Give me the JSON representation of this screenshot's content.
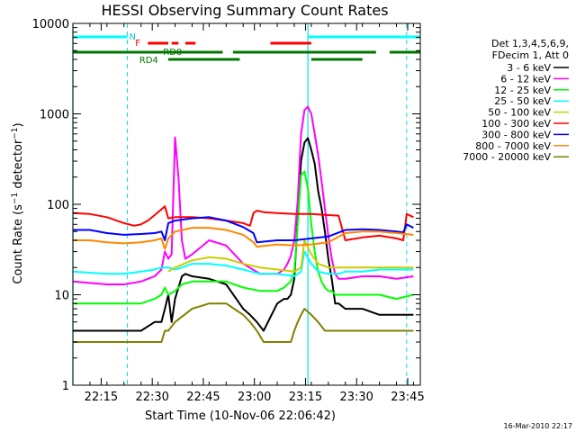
{
  "chart_data": {
    "type": "line",
    "title": "HESSI Observing Summary Count Rates",
    "xlabel": "Start Time (10-Nov-06 22:06:42)",
    "ylabel": "Count Rate (s⁻¹ detector⁻¹)",
    "ylabel_parts": {
      "base": "Count Rate (s",
      "sup1": "−1",
      "mid": " detector",
      "sup2": "−1",
      "end": ")"
    },
    "x_tick_labels": [
      "22:15",
      "22:30",
      "22:45",
      "23:00",
      "23:15",
      "23:30",
      "23:45"
    ],
    "x_ticks_min": [
      8.3,
      23.3,
      38.3,
      53.3,
      68.3,
      83.3,
      98.3
    ],
    "xlim_min": [
      0,
      102
    ],
    "y_scale": "log",
    "ylim": [
      1,
      10000
    ],
    "y_tick_labels": [
      "1",
      "10",
      "100",
      "1000",
      "10000"
    ],
    "grid": false,
    "legend_placement": "right",
    "legend_header": [
      "Det 1,3,4,5,6,9,",
      "FDecim 1, Att 0"
    ],
    "series": [
      {
        "name": "3 - 6 keV",
        "color": "#000000",
        "x": [
          0,
          10,
          15,
          20,
          24,
          26,
          27,
          28,
          29,
          30,
          31,
          32,
          33,
          35,
          40,
          45,
          50,
          52,
          54,
          56,
          60,
          62,
          63,
          64,
          65,
          66,
          67,
          68,
          69,
          70,
          71,
          72,
          73,
          74,
          75,
          76,
          77,
          78,
          80,
          82,
          85,
          90,
          95,
          98,
          100
        ],
        "y": [
          4,
          4,
          4,
          4,
          5,
          5,
          7,
          10,
          5,
          9,
          12,
          16,
          17,
          16,
          15,
          13,
          7,
          6,
          5,
          4,
          8,
          9,
          9,
          10,
          15,
          70,
          300,
          480,
          540,
          400,
          280,
          140,
          90,
          50,
          25,
          15,
          8,
          8,
          7,
          7,
          7,
          6,
          6,
          6,
          6
        ]
      },
      {
        "name": "6 - 12 keV",
        "color": "#ff00ff",
        "x": [
          0,
          10,
          15,
          20,
          22,
          24,
          26,
          27,
          28,
          29,
          30,
          31,
          32,
          33,
          35,
          40,
          45,
          50,
          55,
          60,
          62,
          63,
          64,
          65,
          66,
          67,
          68,
          69,
          70,
          71,
          72,
          73,
          74,
          75,
          76,
          77,
          78,
          80,
          85,
          90,
          95,
          100
        ],
        "y": [
          14,
          13,
          13,
          14,
          15,
          16,
          19,
          30,
          25,
          28,
          550,
          200,
          40,
          25,
          28,
          40,
          35,
          22,
          17,
          17,
          19,
          22,
          27,
          40,
          110,
          600,
          1100,
          1200,
          1000,
          600,
          350,
          180,
          90,
          45,
          25,
          17,
          15,
          15,
          16,
          16,
          15,
          16
        ]
      },
      {
        "name": "12 - 25 keV",
        "color": "#00ff00",
        "x": [
          0,
          10,
          15,
          20,
          24,
          26,
          27,
          28,
          30,
          32,
          35,
          40,
          45,
          50,
          55,
          60,
          62,
          63,
          64,
          65,
          66,
          67,
          68,
          69,
          70,
          71,
          72,
          73,
          74,
          75,
          76,
          77,
          80,
          85,
          90,
          95,
          100
        ],
        "y": [
          8,
          8,
          8,
          8,
          9,
          10,
          12,
          10,
          11,
          13,
          14,
          14,
          14,
          12,
          11,
          11,
          12,
          13,
          14,
          18,
          60,
          210,
          230,
          150,
          60,
          30,
          18,
          14,
          12,
          11,
          11,
          10,
          10,
          10,
          10,
          9,
          10
        ]
      },
      {
        "name": "25 - 50 keV",
        "color": "#00ffff",
        "x": [
          0,
          10,
          15,
          20,
          24,
          26,
          28,
          30,
          32,
          35,
          40,
          45,
          50,
          55,
          60,
          65,
          67,
          68,
          70,
          72,
          75,
          78,
          80,
          85,
          90,
          95,
          100
        ],
        "y": [
          18,
          17,
          17,
          18,
          19,
          20,
          20,
          19,
          20,
          22,
          22,
          21,
          19,
          17,
          17,
          16,
          18,
          30,
          22,
          18,
          17,
          17,
          18,
          18,
          19,
          19,
          19
        ]
      },
      {
        "name": "50 - 100 keV",
        "color": "#cccc00",
        "x": [
          0,
          27,
          28,
          30,
          35,
          40,
          45,
          50,
          55,
          60,
          65,
          67,
          68,
          70,
          72,
          75,
          78,
          80,
          85,
          90,
          95,
          100
        ],
        "y": [
          null,
          null,
          18,
          20,
          24,
          26,
          25,
          22,
          20,
          19,
          18,
          20,
          40,
          28,
          22,
          20,
          20,
          20,
          20,
          20,
          20,
          20
        ]
      },
      {
        "name": "100 - 300 keV",
        "color": "#ff0000",
        "x": [
          0,
          5,
          10,
          15,
          18,
          20,
          22,
          24,
          26,
          27,
          28,
          30,
          35,
          40,
          45,
          50,
          52,
          53,
          54,
          56,
          60,
          65,
          70,
          75,
          78,
          80,
          85,
          90,
          95,
          97,
          98,
          100
        ],
        "y": [
          80,
          78,
          72,
          62,
          58,
          60,
          66,
          76,
          88,
          95,
          70,
          72,
          72,
          70,
          66,
          62,
          58,
          80,
          85,
          82,
          80,
          78,
          78,
          76,
          75,
          40,
          43,
          45,
          42,
          40,
          78,
          72
        ]
      },
      {
        "name": "300 - 800 keV",
        "color": "#0000ff",
        "x": [
          0,
          5,
          10,
          15,
          20,
          24,
          26,
          27,
          28,
          30,
          35,
          40,
          45,
          50,
          53,
          54,
          60,
          65,
          70,
          75,
          80,
          85,
          90,
          95,
          97,
          98,
          100
        ],
        "y": [
          52,
          52,
          48,
          46,
          47,
          48,
          50,
          40,
          62,
          66,
          70,
          72,
          66,
          56,
          48,
          38,
          40,
          40,
          42,
          44,
          52,
          53,
          52,
          50,
          49,
          60,
          55
        ]
      },
      {
        "name": "800 - 7000 keV",
        "color": "#ff8800",
        "x": [
          0,
          5,
          10,
          15,
          20,
          24,
          26,
          27,
          28,
          30,
          35,
          40,
          45,
          50,
          53,
          54,
          60,
          65,
          70,
          75,
          80,
          85,
          90,
          95,
          100
        ],
        "y": [
          40,
          40,
          38,
          37,
          38,
          40,
          42,
          32,
          42,
          50,
          55,
          55,
          52,
          46,
          38,
          34,
          36,
          35,
          36,
          38,
          48,
          50,
          50,
          48,
          46
        ]
      },
      {
        "name": "7000 - 20000 keV",
        "color": "#808000",
        "x": [
          0,
          5,
          10,
          15,
          20,
          24,
          26,
          27,
          28,
          30,
          35,
          40,
          45,
          50,
          52,
          54,
          56,
          58,
          60,
          62,
          64,
          65,
          66,
          67,
          68,
          70,
          72,
          74,
          76,
          78,
          80,
          85,
          90,
          95,
          100
        ],
        "y": [
          3,
          3,
          3,
          3,
          3,
          3,
          3,
          4,
          4,
          5,
          7,
          8,
          8,
          6,
          5,
          4,
          3,
          3,
          3,
          3,
          3,
          4,
          5,
          6,
          7,
          6,
          5,
          4,
          4,
          4,
          4,
          4,
          4,
          4,
          4
        ]
      }
    ],
    "overlays": {
      "saa_labels": {
        "n": "N",
        "f": "F",
        "rd0": "RD0",
        "rd4": "RD4"
      },
      "green_bar_1": [
        [
          0,
          44
        ],
        [
          47,
          89
        ],
        [
          93,
          102
        ]
      ],
      "green_bar_2": [
        [
          28,
          49
        ],
        [
          70,
          85
        ]
      ],
      "red_segments": [
        [
          22,
          28
        ],
        [
          29,
          31
        ],
        [
          33,
          36
        ],
        [
          58,
          70
        ]
      ],
      "cyan_bar": [
        [
          0,
          16
        ],
        [
          69,
          102
        ]
      ],
      "vlines_solid": [
        0,
        69
      ],
      "vlines_dashed": [
        16,
        98
      ]
    }
  },
  "footer_timestamp": "16-Mar-2010 22:17"
}
